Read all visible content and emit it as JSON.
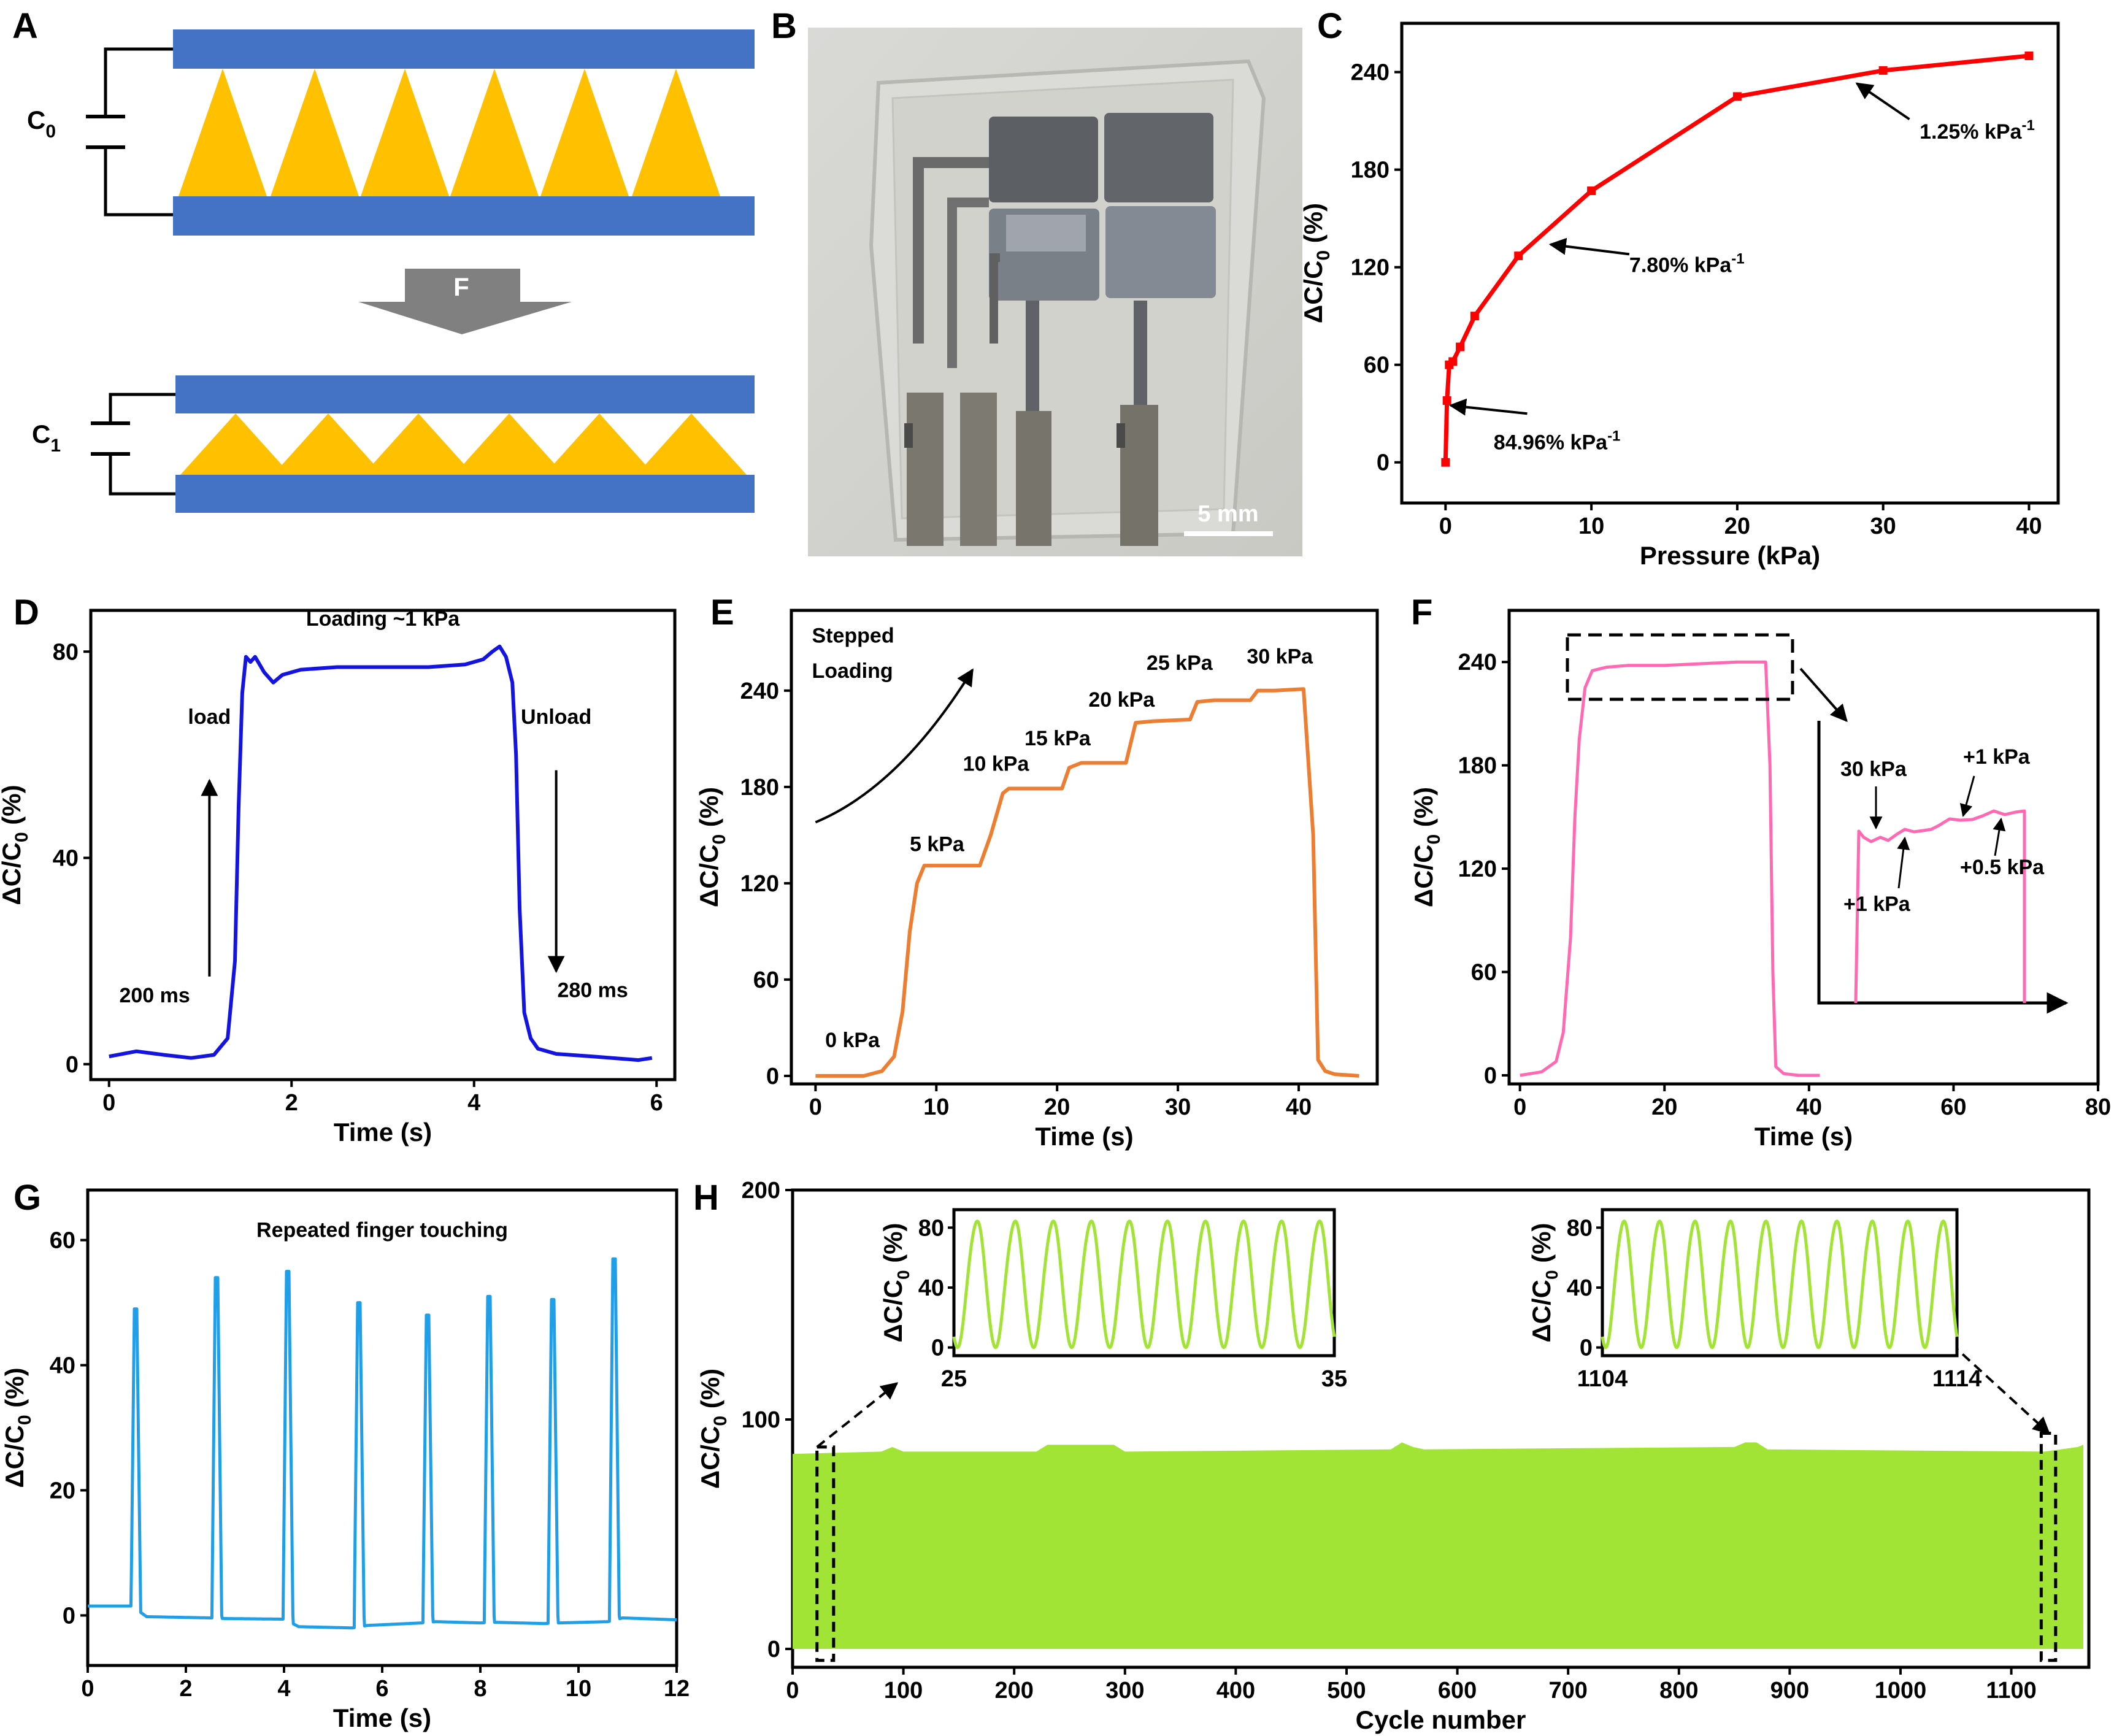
{
  "panels": {
    "A": {
      "letter": "A",
      "c0_label": "C",
      "c0_sub": "0",
      "c1_label": "C",
      "c1_sub": "1",
      "force_label": "F",
      "colors": {
        "electrode": "#4472C4",
        "dielectric": "#FFC000",
        "arrow": "#808080"
      }
    },
    "B": {
      "letter": "B",
      "scale_bar_label": "5 mm"
    },
    "C": {
      "letter": "C"
    },
    "D": {
      "letter": "D"
    },
    "E": {
      "letter": "E"
    },
    "F": {
      "letter": "F"
    },
    "G": {
      "letter": "G"
    },
    "H": {
      "letter": "H"
    }
  },
  "chart_data": [
    {
      "id": "C",
      "type": "line",
      "color": "#FF0000",
      "markers": true,
      "xlabel": "Pressure (kPa)",
      "ylabel": "ΔC/C",
      "ylabel_sub": "0",
      "ylabel_unit": " (%)",
      "xlim": [
        -3,
        42
      ],
      "ylim": [
        -25,
        270
      ],
      "xticks": [
        0,
        10,
        20,
        30,
        40
      ],
      "yticks": [
        0,
        60,
        120,
        180,
        240
      ],
      "x": [
        0,
        0.1,
        0.25,
        0.5,
        1,
        2,
        5,
        10,
        20,
        30,
        40
      ],
      "y": [
        0,
        38,
        60,
        62,
        71,
        90,
        127,
        167,
        225,
        241,
        250
      ],
      "annotations": [
        {
          "text": "84.96% kPa",
          "sup": "-1",
          "tip": [
            0.35,
            35
          ],
          "tail": [
            5.6,
            30
          ],
          "label": [
            3.3,
            8
          ]
        },
        {
          "text": "7.80% kPa",
          "sup": "-1",
          "tip": [
            7.2,
            134
          ],
          "tail": [
            12.6,
            128
          ],
          "label": [
            12.6,
            117
          ]
        },
        {
          "text": "1.25% kPa",
          "sup": "-1",
          "tip": [
            28.2,
            233
          ],
          "tail": [
            31.8,
            211
          ],
          "label": [
            32.5,
            199
          ]
        }
      ]
    },
    {
      "id": "D",
      "type": "line",
      "color": "#1414E0",
      "xlabel": "Time (s)",
      "ylabel": "ΔC/C",
      "ylabel_sub": "0",
      "ylabel_unit": " (%)",
      "xlim": [
        -0.2,
        6.2
      ],
      "ylim": [
        -3,
        88
      ],
      "xticks": [
        0,
        2,
        4,
        6
      ],
      "yticks": [
        0,
        40,
        80
      ],
      "x": [
        0,
        0.3,
        0.6,
        0.9,
        1.15,
        1.3,
        1.38,
        1.42,
        1.46,
        1.5,
        1.55,
        1.6,
        1.7,
        1.8,
        1.9,
        2.1,
        2.5,
        3.0,
        3.5,
        3.9,
        4.1,
        4.2,
        4.28,
        4.35,
        4.42,
        4.46,
        4.5,
        4.55,
        4.62,
        4.7,
        4.9,
        5.3,
        5.8,
        5.95
      ],
      "y": [
        1.5,
        2.5,
        1.8,
        1.2,
        1.8,
        5,
        20,
        50,
        72,
        79,
        78,
        79,
        76,
        74,
        75.5,
        76.5,
        77,
        77,
        77,
        77.5,
        78.5,
        80,
        81,
        79,
        74,
        60,
        30,
        10,
        5,
        3,
        2,
        1.5,
        0.8,
        1.2
      ],
      "annotations": [
        {
          "text": "Loading ~1 kPa",
          "at": [
            3.0,
            85
          ]
        },
        {
          "text": "load",
          "at": [
            1.1,
            66
          ]
        },
        {
          "text": "Unload",
          "at": [
            4.9,
            66
          ]
        },
        {
          "text": "200 ms",
          "at": [
            0.5,
            12
          ]
        },
        {
          "text": "280 ms",
          "at": [
            5.3,
            13
          ]
        }
      ],
      "arrows": [
        {
          "from": [
            1.1,
            17
          ],
          "to": [
            1.1,
            55
          ]
        },
        {
          "from": [
            4.9,
            57
          ],
          "to": [
            4.9,
            18
          ]
        }
      ]
    },
    {
      "id": "E",
      "type": "line",
      "color": "#ED7D31",
      "xlabel": "Time (s)",
      "ylabel": "ΔC/C",
      "ylabel_sub": "0",
      "ylabel_unit": " (%)",
      "xlim": [
        -2,
        46.5
      ],
      "ylim": [
        -5,
        290
      ],
      "xticks": [
        0,
        10,
        20,
        30,
        40
      ],
      "yticks": [
        0,
        60,
        120,
        180,
        240
      ],
      "x": [
        0,
        4,
        5.5,
        6.5,
        7.2,
        7.8,
        8.4,
        9,
        11,
        13.6,
        14.5,
        15.5,
        16,
        18,
        20.4,
        21,
        22,
        24,
        25.7,
        26.5,
        28,
        31,
        31.6,
        33,
        36,
        36.6,
        38,
        40.4,
        41.2,
        41.6,
        42.2,
        43,
        45
      ],
      "y": [
        0,
        0,
        3,
        12,
        40,
        90,
        120,
        131,
        131,
        131,
        150,
        176,
        179,
        179,
        179,
        192,
        195,
        195,
        195,
        220,
        221,
        222,
        233,
        234,
        234,
        240,
        240,
        241,
        150,
        10,
        3,
        1,
        0
      ],
      "annotations": [
        {
          "text": "Stepped",
          "at": [
            -0.3,
            270
          ]
        },
        {
          "text": "Loading",
          "at": [
            -0.3,
            248
          ]
        },
        {
          "text": "0 kPa",
          "at": [
            0.8,
            18
          ]
        },
        {
          "text": "5 kPa",
          "at": [
            7.8,
            140
          ]
        },
        {
          "text": "10 kPa",
          "at": [
            12.2,
            190
          ]
        },
        {
          "text": "15 kPa",
          "at": [
            17.3,
            206
          ]
        },
        {
          "text": "20 kPa",
          "at": [
            22.6,
            230
          ]
        },
        {
          "text": "25 kPa",
          "at": [
            27.4,
            253
          ]
        },
        {
          "text": "30 kPa",
          "at": [
            35.7,
            257
          ]
        }
      ]
    },
    {
      "id": "F",
      "type": "line",
      "color": "#FF69B4",
      "xlabel": "Time (s)",
      "ylabel": "ΔC/C",
      "ylabel_sub": "0",
      "ylabel_unit": " (%)",
      "xlim": [
        -1.5,
        80
      ],
      "ylim": [
        -5,
        270
      ],
      "xticks": [
        0,
        20,
        40,
        60,
        80
      ],
      "yticks": [
        0,
        60,
        120,
        180,
        240
      ],
      "x": [
        0,
        3,
        5,
        6,
        7,
        7.6,
        8.2,
        9,
        10,
        12,
        15,
        20,
        25,
        30,
        34,
        34.6,
        35,
        35.4,
        36.5,
        38.5,
        41.5
      ],
      "y": [
        0,
        2,
        8,
        25,
        80,
        150,
        195,
        225,
        235,
        237,
        238,
        238,
        239,
        240,
        240,
        180,
        60,
        5,
        1,
        0,
        0
      ],
      "annotations": [
        {
          "text": "30 kPa",
          "at": [
            0,
            0
          ]
        },
        {
          "text": "+1 kPa",
          "at": [
            0,
            0
          ]
        },
        {
          "text": "+1 kPa",
          "at": [
            0,
            0
          ]
        },
        {
          "text": "+0.5 kPa",
          "at": [
            0,
            0
          ]
        }
      ]
    },
    {
      "id": "G",
      "type": "line",
      "color": "#1E9FE8",
      "xlabel": "Time (s)",
      "ylabel": "ΔC/C",
      "ylabel_sub": "0",
      "ylabel_unit": " (%)",
      "title": "Repeated finger touching",
      "xlim": [
        0,
        12
      ],
      "ylim": [
        -8,
        68
      ],
      "xticks": [
        0,
        2,
        4,
        6,
        8,
        10,
        12
      ],
      "yticks": [
        0,
        20,
        40,
        60
      ],
      "baseline": [
        [
          0,
          1.5
        ],
        [
          0.9,
          1.5
        ],
        [
          1.2,
          -0.2
        ],
        [
          2.5,
          -0.4
        ],
        [
          2.8,
          -0.5
        ],
        [
          4.0,
          -0.6
        ],
        [
          4.3,
          -1.8
        ],
        [
          5.4,
          -2
        ],
        [
          5.7,
          -1.6
        ],
        [
          6.8,
          -1.2
        ],
        [
          7.1,
          -1.0
        ],
        [
          8.0,
          -1.2
        ],
        [
          8.3,
          -1.1
        ],
        [
          9.3,
          -1.3
        ],
        [
          9.6,
          -1.2
        ],
        [
          10.6,
          -1.0
        ],
        [
          10.9,
          -0.4
        ],
        [
          12,
          -0.7
        ]
      ],
      "peaks_t": [
        0.95,
        2.6,
        4.05,
        5.5,
        6.9,
        8.15,
        9.45,
        10.7
      ],
      "peaks_v": [
        49,
        54,
        55,
        50,
        48,
        51,
        50.5,
        57
      ]
    },
    {
      "id": "H",
      "type": "area",
      "color": "#A2E435",
      "xlabel": "Cycle number",
      "ylabel": "ΔC/C",
      "ylabel_sub": "0",
      "ylabel_unit": " (%)",
      "xlim": [
        0,
        1170
      ],
      "ylim": [
        -8,
        200
      ],
      "xticks": [
        0,
        100,
        200,
        300,
        400,
        500,
        600,
        700,
        800,
        900,
        1000,
        1100
      ],
      "yticks": [
        0,
        100,
        200
      ],
      "envelope_x": [
        0,
        80,
        90,
        100,
        220,
        230,
        290,
        300,
        540,
        550,
        560,
        570,
        850,
        860,
        870,
        880,
        1130,
        1160,
        1165
      ],
      "envelope_top": [
        85,
        86,
        88,
        86,
        86,
        89,
        89,
        86,
        87,
        90,
        88,
        87,
        88,
        90,
        90,
        87,
        86,
        88,
        89
      ],
      "insets": [
        {
          "x_start": 25,
          "x_end": 35,
          "xticks": [
            25,
            35
          ],
          "yticks": [
            0,
            40,
            80
          ],
          "ylabel": "ΔC/C",
          "ylabel_sub": "0",
          "ylabel_unit": " (%)",
          "cycles": 10,
          "max": 85
        },
        {
          "x_start": 1104,
          "x_end": 1114,
          "xticks": [
            1104,
            1114
          ],
          "yticks": [
            0,
            40,
            80
          ],
          "ylabel": "ΔC/C",
          "ylabel_sub": "0",
          "ylabel_unit": " (%)",
          "cycles": 10,
          "max": 85
        }
      ]
    }
  ],
  "insetF": {
    "labels": [
      "30 kPa",
      "+1 kPa",
      "+1 kPa",
      "+0.5 kPa"
    ]
  }
}
